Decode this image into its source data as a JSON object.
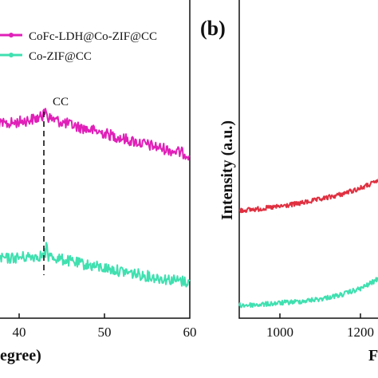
{
  "chart_data": [
    {
      "panel": "",
      "type": "line",
      "xlabel": "egree)",
      "ylabel": "",
      "xlim": [
        33,
        60
      ],
      "x_ticks": [
        40,
        50,
        60
      ],
      "x_tick_labels": [
        "40",
        "50",
        "60"
      ],
      "legend_position": "top",
      "annotation": {
        "text": "CC",
        "x": 43.2
      },
      "series": [
        {
          "name": "CoFc-LDH@Co-ZIF@CC",
          "color": "#e020b8",
          "x": [
            33,
            35,
            37,
            39,
            41,
            43.2,
            45,
            47,
            50,
            53,
            56,
            60
          ],
          "y": [
            158,
            158,
            157,
            155,
            151,
            146,
            153,
            159,
            167,
            176,
            184,
            194
          ]
        },
        {
          "name": "Co-ZIF@CC",
          "color": "#40e0b0",
          "x": [
            33,
            35,
            37,
            39,
            41,
            43.2,
            45,
            47,
            50,
            53,
            56,
            60
          ],
          "y": [
            323,
            324,
            325,
            324,
            322,
            320,
            325,
            330,
            336,
            342,
            348,
            354
          ]
        }
      ]
    },
    {
      "panel": "(b)",
      "type": "line",
      "xlabel": "F",
      "ylabel": "Intensity (a.u.)",
      "xlim": [
        900,
        1380
      ],
      "x_ticks": [
        1000,
        1200
      ],
      "x_tick_labels": [
        "1000",
        "1200"
      ],
      "series": [
        {
          "name": "",
          "color": "#e03040",
          "x": [
            900,
            950,
            1000,
            1050,
            1100,
            1150,
            1200,
            1230,
            1260,
            1290,
            1320,
            1350,
            1380
          ],
          "y": [
            264,
            262,
            259,
            255,
            250,
            244,
            236,
            230,
            222,
            212,
            200,
            188,
            176
          ]
        },
        {
          "name": "",
          "color": "#40e0b0",
          "x": [
            900,
            950,
            1000,
            1050,
            1100,
            1150,
            1200,
            1230,
            1260,
            1290,
            1320,
            1350,
            1380
          ],
          "y": [
            383,
            382,
            380,
            378,
            375,
            370,
            362,
            354,
            344,
            332,
            318,
            304,
            290
          ]
        }
      ]
    }
  ]
}
